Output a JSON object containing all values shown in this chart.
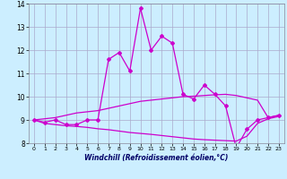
{
  "xlabel": "Windchill (Refroidissement éolien,°C)",
  "bg_color": "#cceeff",
  "grid_color": "#aaaacc",
  "line_color": "#cc00cc",
  "xlim": [
    -0.5,
    23.5
  ],
  "ylim": [
    8,
    14
  ],
  "yticks": [
    8,
    9,
    10,
    11,
    12,
    13,
    14
  ],
  "xticks": [
    0,
    1,
    2,
    3,
    4,
    5,
    6,
    7,
    8,
    9,
    10,
    11,
    12,
    13,
    14,
    15,
    16,
    17,
    18,
    19,
    20,
    21,
    22,
    23
  ],
  "series1": [
    9.0,
    8.9,
    9.0,
    8.8,
    8.8,
    9.0,
    9.0,
    11.6,
    11.9,
    11.1,
    13.8,
    12.0,
    12.6,
    12.3,
    10.1,
    9.9,
    10.5,
    10.1,
    9.6,
    7.8,
    8.6,
    9.0,
    9.1,
    9.2
  ],
  "series2": [
    9.0,
    9.05,
    9.1,
    9.2,
    9.3,
    9.35,
    9.4,
    9.5,
    9.6,
    9.7,
    9.8,
    9.85,
    9.9,
    9.95,
    10.0,
    10.02,
    10.05,
    10.08,
    10.1,
    10.05,
    9.95,
    9.85,
    9.1,
    9.2
  ],
  "series3": [
    9.0,
    8.85,
    8.8,
    8.75,
    8.72,
    8.68,
    8.62,
    8.58,
    8.52,
    8.46,
    8.42,
    8.38,
    8.33,
    8.28,
    8.23,
    8.18,
    8.15,
    8.13,
    8.11,
    8.09,
    8.3,
    8.85,
    9.05,
    9.15
  ]
}
